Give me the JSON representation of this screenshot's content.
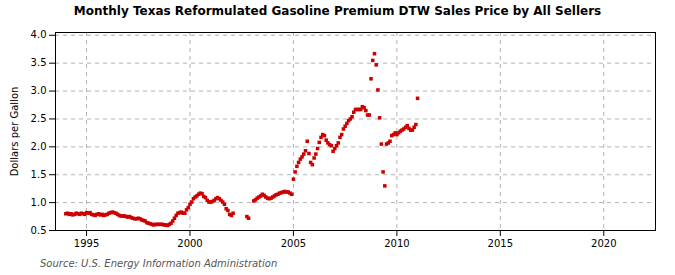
{
  "chart_data": {
    "type": "scatter",
    "title": "Monthly Texas Reformulated Gasoline Premium DTW Sales Price by All Sellers",
    "ylabel": "Dollars per Gallon",
    "source": "Source: U.S. Energy Information Administration",
    "color": "#cc0000",
    "marker": "square",
    "grid": true,
    "xlim": [
      1993.5,
      2022.5
    ],
    "ylim": [
      0.5,
      4.05
    ],
    "xticks": [
      1995,
      2000,
      2005,
      2010,
      2015,
      2020
    ],
    "yticks": [
      0.5,
      {
        "value": 1.0,
        "label": "1.0"
      },
      1.5,
      {
        "value": 2.0,
        "label": "2.0"
      },
      2.5,
      {
        "value": 3.0,
        "label": "3.0"
      },
      3.5,
      {
        "value": 4.0,
        "label": "4.0"
      }
    ],
    "x": [
      1994.0,
      1994.083,
      1994.167,
      1994.25,
      1994.333,
      1994.417,
      1994.5,
      1994.583,
      1994.667,
      1994.75,
      1994.833,
      1994.917,
      1995.0,
      1995.083,
      1995.167,
      1995.25,
      1995.333,
      1995.417,
      1995.5,
      1995.583,
      1995.667,
      1995.75,
      1995.833,
      1995.917,
      1996.0,
      1996.083,
      1996.167,
      1996.25,
      1996.333,
      1996.417,
      1996.5,
      1996.583,
      1996.667,
      1996.75,
      1996.833,
      1996.917,
      1997.0,
      1997.083,
      1997.167,
      1997.25,
      1997.333,
      1997.417,
      1997.5,
      1997.583,
      1997.667,
      1997.75,
      1997.833,
      1997.917,
      1998.0,
      1998.083,
      1998.167,
      1998.25,
      1998.333,
      1998.417,
      1998.5,
      1998.583,
      1998.667,
      1998.75,
      1998.833,
      1998.917,
      1999.0,
      1999.083,
      1999.167,
      1999.25,
      1999.333,
      1999.417,
      1999.5,
      1999.583,
      1999.667,
      1999.75,
      1999.833,
      1999.917,
      2000.0,
      2000.083,
      2000.167,
      2000.25,
      2000.333,
      2000.417,
      2000.5,
      2000.583,
      2000.667,
      2000.75,
      2000.833,
      2000.917,
      2001.0,
      2001.083,
      2001.167,
      2001.25,
      2001.333,
      2001.417,
      2001.5,
      2001.583,
      2001.667,
      2001.75,
      2001.833,
      2001.917,
      2002.0,
      2002.083,
      2002.75,
      2002.833,
      2003.083,
      2003.167,
      2003.25,
      2003.333,
      2003.417,
      2003.5,
      2003.583,
      2003.667,
      2003.75,
      2003.833,
      2003.917,
      2004.0,
      2004.083,
      2004.167,
      2004.25,
      2004.333,
      2004.417,
      2004.5,
      2004.583,
      2004.667,
      2004.75,
      2004.833,
      2004.917,
      2005.0,
      2005.083,
      2005.167,
      2005.25,
      2005.333,
      2005.417,
      2005.5,
      2005.583,
      2005.667,
      2005.75,
      2005.833,
      2005.917,
      2006.0,
      2006.083,
      2006.167,
      2006.25,
      2006.333,
      2006.417,
      2006.5,
      2006.583,
      2006.667,
      2006.75,
      2006.833,
      2006.917,
      2007.0,
      2007.083,
      2007.167,
      2007.25,
      2007.333,
      2007.417,
      2007.5,
      2007.583,
      2007.667,
      2007.75,
      2007.833,
      2007.917,
      2008.0,
      2008.083,
      2008.167,
      2008.25,
      2008.333,
      2008.417,
      2008.5,
      2008.583,
      2008.667,
      2008.75,
      2008.833,
      2008.917,
      2009.0,
      2009.083,
      2009.167,
      2009.25,
      2009.333,
      2009.417,
      2009.5,
      2009.583,
      2009.667,
      2009.75,
      2009.833,
      2009.917,
      2010.0,
      2010.083,
      2010.167,
      2010.25,
      2010.333,
      2010.417,
      2010.5,
      2010.583,
      2010.667,
      2010.75,
      2010.833,
      2010.917,
      2011.0
    ],
    "values": [
      0.8,
      0.81,
      0.79,
      0.8,
      0.78,
      0.79,
      0.81,
      0.8,
      0.79,
      0.81,
      0.8,
      0.79,
      0.82,
      0.81,
      0.82,
      0.79,
      0.78,
      0.77,
      0.79,
      0.8,
      0.78,
      0.79,
      0.77,
      0.78,
      0.79,
      0.81,
      0.82,
      0.83,
      0.82,
      0.81,
      0.79,
      0.77,
      0.76,
      0.76,
      0.76,
      0.75,
      0.74,
      0.75,
      0.73,
      0.72,
      0.71,
      0.71,
      0.72,
      0.71,
      0.69,
      0.68,
      0.67,
      0.64,
      0.63,
      0.62,
      0.61,
      0.6,
      0.61,
      0.61,
      0.61,
      0.61,
      0.61,
      0.6,
      0.6,
      0.59,
      0.61,
      0.63,
      0.67,
      0.72,
      0.77,
      0.81,
      0.82,
      0.83,
      0.81,
      0.81,
      0.87,
      0.91,
      0.97,
      1.01,
      1.07,
      1.1,
      1.12,
      1.15,
      1.17,
      1.16,
      1.11,
      1.09,
      1.04,
      1.01,
      1.01,
      1.02,
      1.04,
      1.07,
      1.09,
      1.07,
      1.04,
      1.01,
      0.97,
      0.89,
      0.86,
      0.79,
      0.77,
      0.81,
      0.75,
      0.72,
      1.03,
      1.05,
      1.08,
      1.1,
      1.12,
      1.15,
      1.13,
      1.1,
      1.08,
      1.07,
      1.08,
      1.1,
      1.12,
      1.14,
      1.15,
      1.17,
      1.18,
      1.19,
      1.2,
      1.19,
      1.19,
      1.17,
      1.15,
      1.42,
      1.55,
      1.65,
      1.72,
      1.78,
      1.82,
      1.87,
      1.93,
      2.1,
      1.88,
      1.72,
      1.68,
      1.8,
      1.87,
      1.97,
      2.08,
      2.17,
      2.22,
      2.2,
      2.12,
      2.07,
      2.04,
      2.02,
      1.92,
      1.97,
      2.02,
      2.07,
      2.17,
      2.22,
      2.32,
      2.37,
      2.42,
      2.47,
      2.5,
      2.54,
      2.62,
      2.67,
      2.67,
      2.67,
      2.67,
      2.72,
      2.7,
      2.65,
      2.57,
      2.57,
      3.22,
      3.55,
      3.67,
      3.47,
      3.02,
      2.52,
      2.05,
      1.55,
      1.3,
      2.05,
      2.07,
      2.1,
      2.2,
      2.22,
      2.25,
      2.22,
      2.25,
      2.28,
      2.3,
      2.32,
      2.35,
      2.38,
      2.33,
      2.3,
      2.3,
      2.35,
      2.4,
      2.87
    ]
  }
}
